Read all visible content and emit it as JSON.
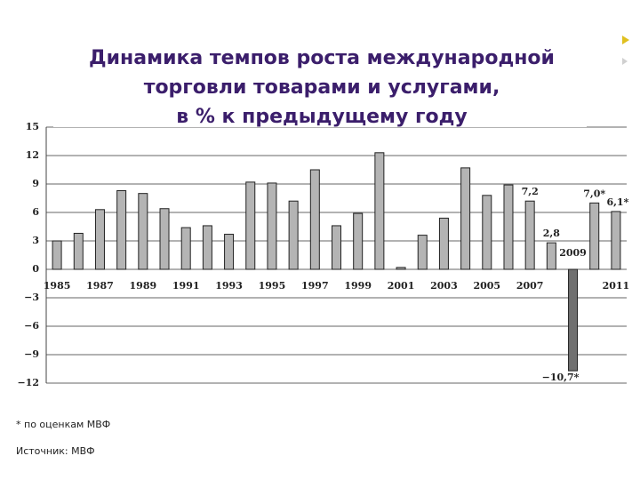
{
  "chart_data": {
    "type": "bar",
    "title": [
      "Динамика темпов роста международной",
      "торговли товарами и услугами,",
      "в % к предыдущему году"
    ],
    "categories": [
      "1985",
      null,
      "1987",
      null,
      "1989",
      null,
      "1991",
      null,
      "1993",
      null,
      "1995",
      null,
      "1997",
      null,
      "1999",
      null,
      "2001",
      null,
      "2003",
      null,
      "2005",
      null,
      "2007",
      null,
      "2009",
      null,
      "2011"
    ],
    "values": [
      3.0,
      3.8,
      6.3,
      8.3,
      8.0,
      6.4,
      4.4,
      4.6,
      3.7,
      9.2,
      9.1,
      7.2,
      10.5,
      4.6,
      5.9,
      12.3,
      0.2,
      3.6,
      5.4,
      10.7,
      7.8,
      8.9,
      7.2,
      2.8,
      -10.7,
      7.0,
      6.1
    ],
    "value_labels": [
      null,
      null,
      null,
      null,
      null,
      null,
      null,
      null,
      null,
      null,
      null,
      null,
      null,
      null,
      null,
      null,
      null,
      null,
      null,
      null,
      null,
      null,
      "7,2",
      "2,8",
      "−10,7*",
      "7,0*",
      "6,1*"
    ],
    "color": "#b4b4b4",
    "negative_color": "#707070",
    "ylim": [
      -12,
      15
    ],
    "yticks": [
      15,
      12,
      9,
      6,
      3,
      0,
      {
        "value": -3,
        "label": "−3"
      },
      {
        "value": -6,
        "label": "−6"
      },
      {
        "value": -9,
        "label": "−9"
      },
      {
        "value": -12,
        "label": "−12"
      }
    ],
    "grid": true,
    "notes": [
      "* по оценкам МВФ",
      "Источник: МВФ"
    ]
  }
}
